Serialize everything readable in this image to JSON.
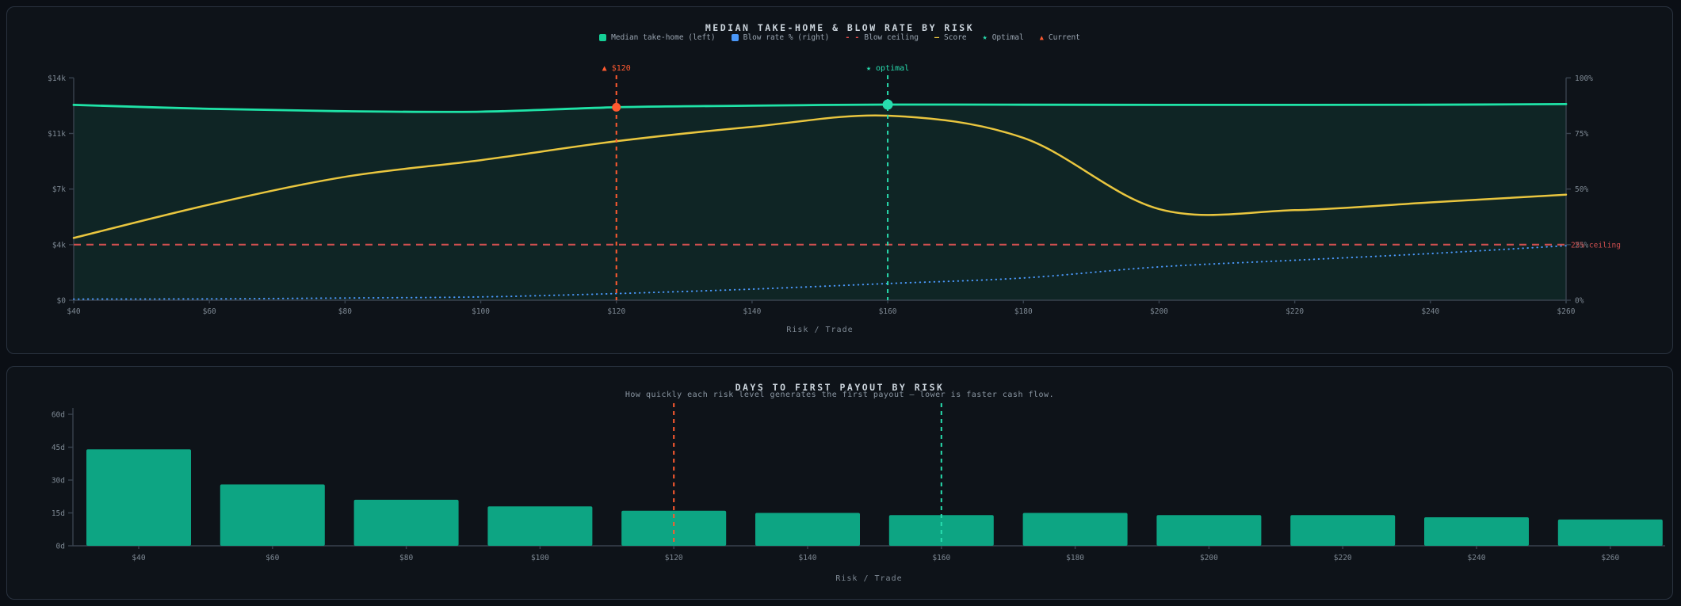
{
  "page": {
    "background": "#0b0f15",
    "card_background": "#0e1319",
    "card_border": "#2a3340",
    "axis_color": "#39434f",
    "tick_text_color": "#7e8994",
    "title_color": "#ccd5dd"
  },
  "chart_data": [
    {
      "type": "line",
      "title": "MEDIAN TAKE-HOME & BLOW RATE BY RISK",
      "xlabel": "Risk / Trade",
      "x": [
        40,
        60,
        80,
        100,
        120,
        140,
        160,
        180,
        200,
        220,
        240,
        260
      ],
      "x_tick_labels": [
        "$40",
        "$60",
        "$80",
        "$100",
        "$120",
        "$140",
        "$160",
        "$180",
        "$200",
        "$220",
        "$240",
        "$260"
      ],
      "x_range": [
        40,
        260
      ],
      "left_axis": {
        "range": [
          0,
          14000
        ],
        "ticks": [
          {
            "value": 0,
            "label": "$0"
          },
          {
            "value": 3500,
            "label": "$4k"
          },
          {
            "value": 7000,
            "label": "$7k"
          },
          {
            "value": 10500,
            "label": "$11k"
          },
          {
            "value": 14000,
            "label": "$14k"
          }
        ]
      },
      "right_axis": {
        "range": [
          0,
          100
        ],
        "ticks": [
          {
            "value": 0,
            "label": "0%"
          },
          {
            "value": 25,
            "label": "25%"
          },
          {
            "value": 50,
            "label": "50%"
          },
          {
            "value": 75,
            "label": "75%"
          },
          {
            "value": 100,
            "label": "100%"
          }
        ]
      },
      "series": [
        {
          "name": "Median take-home (left)",
          "axis": "left",
          "style": "area",
          "color": "#1fe3a7",
          "fill": "rgba(31,227,167,0.09)",
          "values": [
            12300,
            12050,
            11900,
            11870,
            12150,
            12250,
            12320,
            12310,
            12300,
            12300,
            12310,
            12350
          ]
        },
        {
          "name": "Blow rate % (right)",
          "axis": "right",
          "style": "dotted",
          "color": "#4a97f8",
          "values": [
            0.5,
            0.6,
            1,
            1.5,
            3,
            5,
            7.5,
            10,
            15,
            18,
            21,
            24.5
          ]
        },
        {
          "name": "Score",
          "axis": "right",
          "style": "solid",
          "color": "#e9c63f",
          "values": [
            28,
            43,
            55.5,
            63,
            71.5,
            78,
            83,
            73,
            41,
            40.5,
            44,
            47.5
          ]
        }
      ],
      "ceiling": {
        "label": "25% ceiling",
        "value": 25,
        "color": "#cf4f4f"
      },
      "markers": [
        {
          "name": "current",
          "risk": 120,
          "label": "▲ $120",
          "color": "#ff5a30",
          "dot_value": 12150,
          "dot_r": 5.5
        },
        {
          "name": "optimal",
          "risk": 160,
          "label": "★ optimal",
          "color": "#28dcae",
          "dot_value": 12320,
          "dot_r": 6.5
        }
      ],
      "legend": [
        {
          "icon": "square",
          "color": "#15cf96",
          "label": "Median take-home (left)"
        },
        {
          "icon": "square",
          "color": "#4a97f8",
          "label": "Blow rate % (right)"
        },
        {
          "icon": "dashes",
          "color": "#e14c4c",
          "label": "Blow ceiling"
        },
        {
          "icon": "line",
          "color": "#e9c63f",
          "label": "Score"
        },
        {
          "icon": "star",
          "color": "#28dcae",
          "label": "Optimal"
        },
        {
          "icon": "triangle",
          "color": "#ff5a30",
          "label": "Current"
        }
      ]
    },
    {
      "type": "bar",
      "title": "DAYS TO FIRST PAYOUT BY RISK",
      "subtitle": "How quickly each risk level generates the first payout — lower is faster cash flow.",
      "xlabel": "Risk / Trade",
      "categories": [
        "$40",
        "$60",
        "$80",
        "$100",
        "$120",
        "$140",
        "$160",
        "$180",
        "$200",
        "$220",
        "$240",
        "$260"
      ],
      "values": [
        44,
        28,
        21,
        18,
        16,
        15,
        14,
        15,
        14,
        14,
        13,
        12
      ],
      "ylim": [
        0,
        60
      ],
      "yticks": [
        {
          "value": 0,
          "label": "0d"
        },
        {
          "value": 15,
          "label": "15d"
        },
        {
          "value": 30,
          "label": "30d"
        },
        {
          "value": 45,
          "label": "45d"
        },
        {
          "value": 60,
          "label": "60d"
        }
      ],
      "bar_color": "#0da583",
      "markers": [
        {
          "name": "current",
          "category": "$120",
          "color": "#ff5a30"
        },
        {
          "name": "optimal",
          "category": "$160",
          "color": "#28dcae"
        }
      ]
    }
  ]
}
